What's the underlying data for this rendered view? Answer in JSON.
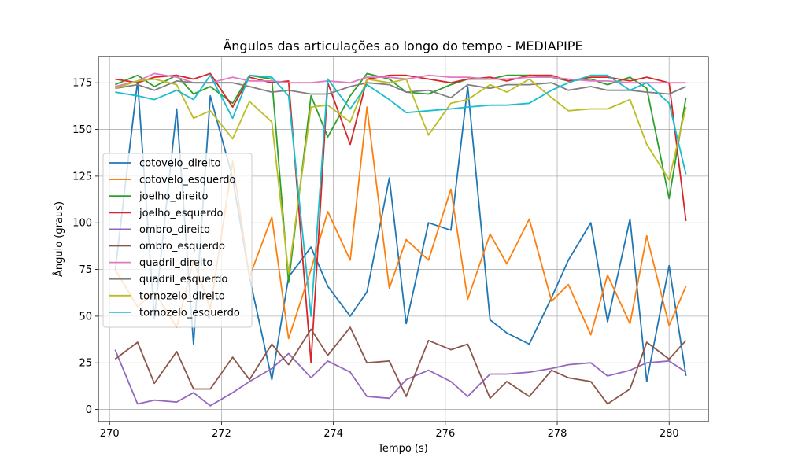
{
  "chart_data": {
    "type": "line",
    "title": "Ângulos das articulações ao longo do tempo - MEDIAPIPE",
    "xlabel": "Tempo (s)",
    "ylabel": "Ângulo (graus)",
    "xlim": [
      269.8,
      280.7
    ],
    "ylim": [
      -6.5,
      189
    ],
    "xticks": [
      270,
      272,
      274,
      276,
      278,
      280
    ],
    "yticks": [
      0,
      25,
      50,
      75,
      100,
      125,
      150,
      175
    ],
    "grid": true,
    "legend_position": "center-left",
    "x": [
      270.1,
      270.5,
      270.8,
      271.2,
      271.5,
      271.8,
      272.2,
      272.5,
      272.9,
      273.2,
      273.6,
      273.9,
      274.3,
      274.6,
      275.0,
      275.3,
      275.7,
      276.1,
      276.4,
      276.8,
      277.1,
      277.5,
      277.9,
      278.2,
      278.6,
      278.9,
      279.3,
      279.6,
      280.0,
      280.3
    ],
    "series": [
      {
        "name": "cotovelo_direito",
        "color": "#1f77b4",
        "values": [
          74,
          176,
          49,
          161,
          35,
          168,
          124,
          71,
          16,
          71,
          87,
          66,
          50,
          63,
          124,
          46,
          100,
          96,
          173,
          48,
          41,
          35,
          60,
          80,
          100,
          47,
          102,
          15,
          77,
          18
        ]
      },
      {
        "name": "cotovelo_esquerdo",
        "color": "#ff7f0e",
        "values": [
          75,
          55,
          63,
          44,
          80,
          54,
          133,
          71,
          103,
          38,
          75,
          106,
          80,
          162,
          65,
          91,
          80,
          118,
          59,
          94,
          78,
          102,
          58,
          67,
          40,
          72,
          46,
          93,
          45,
          66
        ]
      },
      {
        "name": "joelho_direito",
        "color": "#2ca02c",
        "values": [
          174,
          179,
          173,
          179,
          169,
          173,
          164,
          179,
          177,
          68,
          168,
          146,
          168,
          180,
          177,
          170,
          169,
          174,
          177,
          177,
          179,
          179,
          178,
          176,
          177,
          174,
          178,
          172,
          113,
          167
        ]
      },
      {
        "name": "joelho_esquerdo",
        "color": "#d62728",
        "values": [
          177,
          175,
          178,
          179,
          177,
          180,
          162,
          178,
          175,
          176,
          25,
          175,
          142,
          177,
          179,
          179,
          177,
          175,
          177,
          178,
          176,
          179,
          179,
          176,
          178,
          178,
          176,
          178,
          175,
          101
        ]
      },
      {
        "name": "ombro_direito",
        "color": "#9467bd",
        "values": [
          32,
          3,
          5,
          4,
          9,
          2,
          9,
          15,
          22,
          30,
          17,
          26,
          20,
          7,
          6,
          16,
          21,
          15,
          7,
          19,
          19,
          20,
          22,
          24,
          25,
          18,
          21,
          25,
          26,
          20
        ]
      },
      {
        "name": "ombro_esquerdo",
        "color": "#8c564b",
        "values": [
          27,
          36,
          14,
          31,
          11,
          11,
          28,
          16,
          35,
          24,
          43,
          29,
          44,
          25,
          26,
          7,
          37,
          32,
          35,
          6,
          15,
          7,
          21,
          17,
          15,
          3,
          11,
          36,
          27,
          37
        ]
      },
      {
        "name": "quadril_direito",
        "color": "#e377c2",
        "values": [
          173,
          176,
          180,
          178,
          175,
          175,
          178,
          176,
          176,
          175,
          175,
          176,
          175,
          178,
          178,
          177,
          179,
          178,
          178,
          177,
          177,
          178,
          178,
          177,
          176,
          176,
          175,
          175,
          175,
          175
        ]
      },
      {
        "name": "quadril_esquerdo",
        "color": "#7f7f7f",
        "values": [
          172,
          174,
          171,
          176,
          175,
          175,
          175,
          173,
          170,
          171,
          169,
          169,
          173,
          175,
          174,
          170,
          171,
          167,
          174,
          172,
          174,
          174,
          175,
          171,
          173,
          171,
          171,
          170,
          169,
          173
        ]
      },
      {
        "name": "tornozelo_direito",
        "color": "#bcbd22",
        "values": [
          172,
          176,
          177,
          174,
          156,
          160,
          145,
          165,
          154,
          73,
          162,
          163,
          154,
          177,
          175,
          177,
          147,
          164,
          166,
          174,
          170,
          177,
          167,
          160,
          161,
          161,
          166,
          142,
          123,
          162
        ]
      },
      {
        "name": "tornozelo_esquerdo",
        "color": "#17becf",
        "values": [
          170,
          168,
          166,
          171,
          166,
          179,
          156,
          179,
          178,
          168,
          50,
          177,
          161,
          174,
          166,
          159,
          160,
          161,
          162,
          163,
          163,
          164,
          171,
          175,
          179,
          179,
          171,
          175,
          164,
          126
        ]
      }
    ]
  }
}
